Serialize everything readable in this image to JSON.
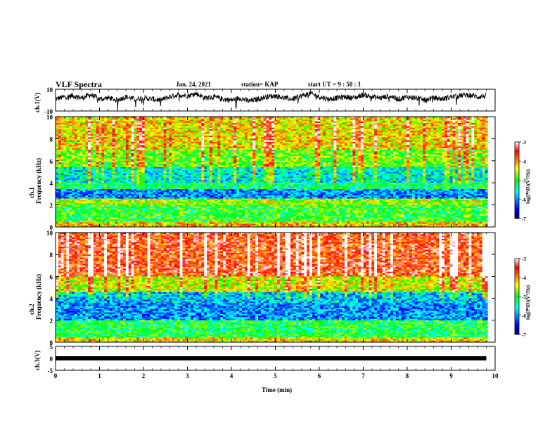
{
  "header": {
    "title": "VLF Spectra",
    "date": "Jan. 24, 2021",
    "station": "station= KAP",
    "start": "start  UT =  9 : 50 : 1"
  },
  "chart_data": [
    {
      "type": "line",
      "name": "ch1-waveform",
      "ylabel": "ch.1(V)",
      "ylim": [
        -10,
        10
      ],
      "yticks": [
        "10",
        "-10"
      ],
      "xlim": [
        0,
        10
      ],
      "description_of_trace": "noisy waveform roughly between -6 and 8 V",
      "x": [
        0.0,
        0.2,
        0.4,
        0.6,
        0.8,
        1.0,
        1.2,
        1.4,
        1.6,
        1.8,
        2.0,
        2.2,
        2.4,
        2.6,
        2.8,
        3.0,
        3.2,
        3.4,
        3.6,
        3.8,
        4.0,
        4.2,
        4.4,
        4.6,
        4.8,
        5.0,
        5.2,
        5.4,
        5.6,
        5.8,
        6.0,
        6.2,
        6.4,
        6.6,
        6.8,
        7.0,
        7.2,
        7.4,
        7.6,
        7.8,
        8.0,
        8.2,
        8.4,
        8.6,
        8.8,
        9.0,
        9.2,
        9.4,
        9.6,
        9.8
      ],
      "y": [
        1,
        3,
        4,
        2,
        5,
        1,
        2,
        0,
        3,
        1,
        2,
        1,
        0,
        3,
        5,
        4,
        6,
        2,
        3,
        1,
        0,
        2,
        -1,
        1,
        3,
        4,
        2,
        1,
        4,
        6,
        3,
        1,
        2,
        3,
        2,
        5,
        3,
        2,
        4,
        1,
        3,
        2,
        0,
        2,
        1,
        3,
        4,
        5,
        3,
        4
      ]
    },
    {
      "type": "heatmap",
      "name": "ch1-spectrogram",
      "ylabel": "ch.1\nFrequency  (kHz)",
      "xlim": [
        0,
        10
      ],
      "ylim": [
        0,
        10
      ],
      "yticks": [
        0,
        2,
        4,
        6,
        8,
        10
      ],
      "colorbar": {
        "label": "log(PSD)(V²/Hz)",
        "range": [
          -7,
          -3
        ],
        "ticks": [
          "-3",
          "-4",
          "-5",
          "-6",
          "-7"
        ]
      },
      "band_levels_log_psd": [
        {
          "f_khz": [
            0.0,
            0.5
          ],
          "level": -4.2
        },
        {
          "f_khz": [
            0.5,
            2.0
          ],
          "level": -5.0
        },
        {
          "f_khz": [
            2.0,
            2.6
          ],
          "level": -4.6
        },
        {
          "f_khz": [
            2.6,
            3.4
          ],
          "level": -6.0
        },
        {
          "f_khz": [
            3.4,
            4.0
          ],
          "level": -5.2
        },
        {
          "f_khz": [
            4.0,
            5.4
          ],
          "level": -5.6
        },
        {
          "f_khz": [
            5.4,
            7.0
          ],
          "level": -4.8
        },
        {
          "f_khz": [
            7.0,
            10.0
          ],
          "level": -4.3
        }
      ]
    },
    {
      "type": "heatmap",
      "name": "ch2-spectrogram",
      "ylabel": "ch.2\nFrequency  (kHz)",
      "xlim": [
        0,
        10
      ],
      "ylim": [
        0,
        10
      ],
      "yticks": [
        0,
        2,
        4,
        6,
        8,
        10
      ],
      "colorbar": {
        "label": "log(PSD)(V²/Hz)",
        "range": [
          -7,
          -3
        ],
        "ticks": [
          "-3",
          "-4",
          "-5",
          "-6",
          "-7"
        ]
      },
      "band_levels_log_psd": [
        {
          "f_khz": [
            0.0,
            0.4
          ],
          "level": -4.3
        },
        {
          "f_khz": [
            0.4,
            2.0
          ],
          "level": -5.1
        },
        {
          "f_khz": [
            2.0,
            3.6
          ],
          "level": -6.0
        },
        {
          "f_khz": [
            3.6,
            4.6
          ],
          "level": -5.8
        },
        {
          "f_khz": [
            4.6,
            6.0
          ],
          "level": -4.5
        },
        {
          "f_khz": [
            6.0,
            10.0
          ],
          "level": -3.6
        }
      ]
    },
    {
      "type": "line",
      "name": "ch3-waveform",
      "ylabel": "ch.3(V)",
      "ylim": [
        -5,
        5
      ],
      "yticks": [
        "5",
        "0",
        "-5"
      ],
      "xlim": [
        0,
        10
      ],
      "x": [
        0,
        9.8
      ],
      "y": [
        0,
        0
      ]
    }
  ],
  "xaxis": {
    "label": "Time  (min)",
    "ticks": [
      "0",
      "1",
      "2",
      "3",
      "4",
      "5",
      "6",
      "7",
      "8",
      "9",
      "10"
    ]
  }
}
